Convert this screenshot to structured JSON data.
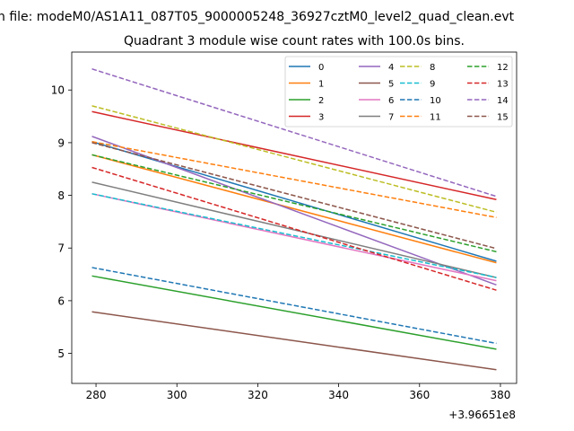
{
  "chart_data": {
    "type": "line",
    "suptitle": "n file: modeM0/AS1A11_087T05_9000005248_36927cztM0_level2_quad_clean.evt",
    "title": "Quadrant 3 module wise count rates with 100.0s bins.",
    "xlabel": "",
    "ylabel": "",
    "x_offset_label": "+3.96651e8",
    "xlim": [
      274,
      384
    ],
    "ylim": [
      4.43,
      10.72
    ],
    "xticks": [
      "280",
      "300",
      "320",
      "340",
      "360",
      "380"
    ],
    "yticks": [
      "5",
      "6",
      "7",
      "8",
      "9",
      "10"
    ],
    "x": [
      279,
      379
    ],
    "grid": false,
    "legend": {
      "placement": "top-right",
      "columns": 4
    },
    "series": [
      {
        "name": "0",
        "values": [
          9.02,
          6.75
        ],
        "color": "#1f77b4",
        "style": "solid"
      },
      {
        "name": "1",
        "values": [
          8.77,
          6.72
        ],
        "color": "#ff7f0e",
        "style": "solid"
      },
      {
        "name": "2",
        "values": [
          6.47,
          5.08
        ],
        "color": "#2ca02c",
        "style": "solid"
      },
      {
        "name": "3",
        "values": [
          9.59,
          7.92
        ],
        "color": "#d62728",
        "style": "solid"
      },
      {
        "name": "4",
        "values": [
          9.12,
          6.3
        ],
        "color": "#9467bd",
        "style": "solid"
      },
      {
        "name": "5",
        "values": [
          5.79,
          4.69
        ],
        "color": "#8c564b",
        "style": "solid"
      },
      {
        "name": "6",
        "values": [
          8.03,
          6.38
        ],
        "color": "#e377c2",
        "style": "solid"
      },
      {
        "name": "7",
        "values": [
          8.25,
          6.44
        ],
        "color": "#7f7f7f",
        "style": "solid"
      },
      {
        "name": "8",
        "values": [
          9.7,
          7.68
        ],
        "color": "#bcbd22",
        "style": "dashed"
      },
      {
        "name": "9",
        "values": [
          8.03,
          6.44
        ],
        "color": "#17becf",
        "style": "dashed"
      },
      {
        "name": "10",
        "values": [
          6.63,
          5.19
        ],
        "color": "#1f77b4",
        "style": "dashed"
      },
      {
        "name": "11",
        "values": [
          9.02,
          7.58
        ],
        "color": "#ff7f0e",
        "style": "dashed"
      },
      {
        "name": "12",
        "values": [
          8.77,
          6.93
        ],
        "color": "#2ca02c",
        "style": "dashed"
      },
      {
        "name": "13",
        "values": [
          8.53,
          6.2
        ],
        "color": "#d62728",
        "style": "dashed"
      },
      {
        "name": "14",
        "values": [
          10.4,
          7.98
        ],
        "color": "#9467bd",
        "style": "dashed"
      },
      {
        "name": "15",
        "values": [
          9.0,
          6.99
        ],
        "color": "#8c564b",
        "style": "dashed"
      }
    ]
  }
}
